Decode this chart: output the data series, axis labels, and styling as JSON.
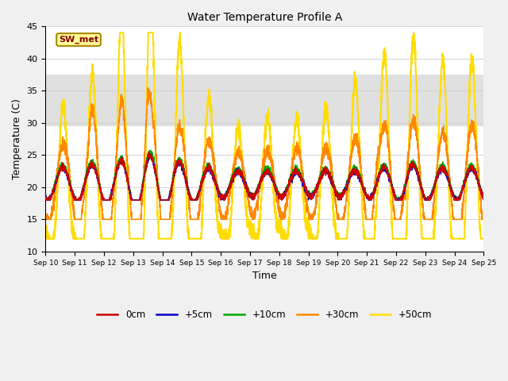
{
  "title": "Water Temperature Profile A",
  "xlabel": "Time",
  "ylabel": "Temperature (C)",
  "ylim": [
    10,
    45
  ],
  "xlim": [
    0,
    15
  ],
  "xtick_labels": [
    "Sep 10",
    "Sep 11",
    "Sep 12",
    "Sep 13",
    "Sep 14",
    "Sep 15",
    "Sep 16",
    "Sep 17",
    "Sep 18",
    "Sep 19",
    "Sep 20",
    "Sep 21",
    "Sep 22",
    "Sep 23",
    "Sep 24",
    "Sep 25"
  ],
  "ytick_vals": [
    10,
    15,
    20,
    25,
    30,
    35,
    40,
    45
  ],
  "series_labels": [
    "0cm",
    "+5cm",
    "+10cm",
    "+30cm",
    "+50cm"
  ],
  "series_colors": [
    "#cc0000",
    "#0000cc",
    "#00aa00",
    "#ff8800",
    "#ffdd00"
  ],
  "series_linewidths": [
    1.0,
    1.0,
    1.0,
    1.2,
    1.5
  ],
  "annotation_text": "SW_met",
  "annotation_bg": "#ffff99",
  "annotation_border": "#aa8800",
  "annotation_text_color": "#880000",
  "shading_y1": 29.5,
  "shading_y2": 37.5,
  "shading_color": "#e0e0e0",
  "background_color": "#f0f0f0",
  "plot_bg": "#ffffff",
  "figsize": [
    6.4,
    4.8
  ],
  "dpi": 100
}
